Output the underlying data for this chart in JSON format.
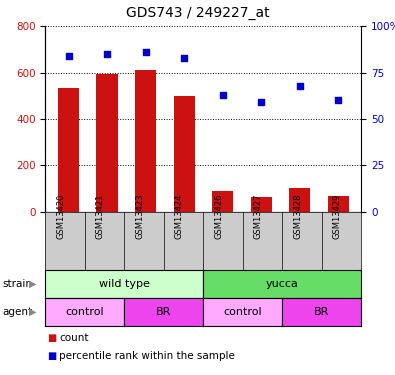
{
  "title": "GDS743 / 249227_at",
  "samples": [
    "GSM13420",
    "GSM13421",
    "GSM13423",
    "GSM13424",
    "GSM13426",
    "GSM13427",
    "GSM13428",
    "GSM13429"
  ],
  "counts": [
    535,
    595,
    610,
    500,
    90,
    65,
    105,
    70
  ],
  "percentile_ranks": [
    84,
    85,
    86,
    83,
    63,
    59,
    68,
    60
  ],
  "ylim_left": [
    0,
    800
  ],
  "ylim_right": [
    0,
    100
  ],
  "yticks_left": [
    0,
    200,
    400,
    600,
    800
  ],
  "yticks_right": [
    0,
    25,
    50,
    75,
    100
  ],
  "strain_configs": [
    [
      0,
      4,
      "wild type",
      "#ccffcc"
    ],
    [
      4,
      8,
      "yucca",
      "#66dd66"
    ]
  ],
  "agent_configs": [
    [
      0,
      2,
      "control",
      "#ffaaff"
    ],
    [
      2,
      4,
      "BR",
      "#ee44ee"
    ],
    [
      4,
      6,
      "control",
      "#ffaaff"
    ],
    [
      6,
      8,
      "BR",
      "#ee44ee"
    ]
  ],
  "bar_color": "#cc1111",
  "dot_color": "#0000cc",
  "tick_color_left": "#cc1111",
  "tick_color_right": "#0000cc",
  "sample_bg": "#cccccc",
  "legend_red": "count",
  "legend_blue": "percentile rank within the sample"
}
